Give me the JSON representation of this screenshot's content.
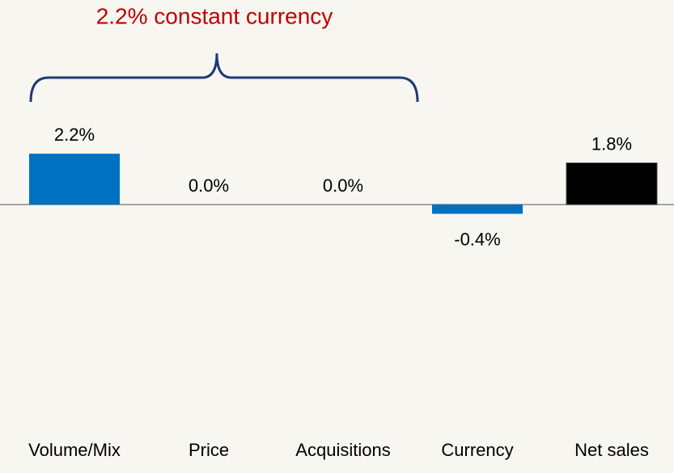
{
  "chart_data": {
    "type": "bar",
    "categories": [
      "Volume/Mix",
      "Price",
      "Acquisitions",
      "Currency",
      "Net sales"
    ],
    "values": [
      2.2,
      0.0,
      0.0,
      -0.4,
      1.8
    ],
    "value_labels": [
      "2.2%",
      "0.0%",
      "0.0%",
      "-0.4%",
      "1.8%"
    ],
    "colors": [
      "#0070c0",
      "#0070c0",
      "#0070c0",
      "#0070c0",
      "#000000"
    ],
    "annotation": "2.2% constant currency"
  }
}
